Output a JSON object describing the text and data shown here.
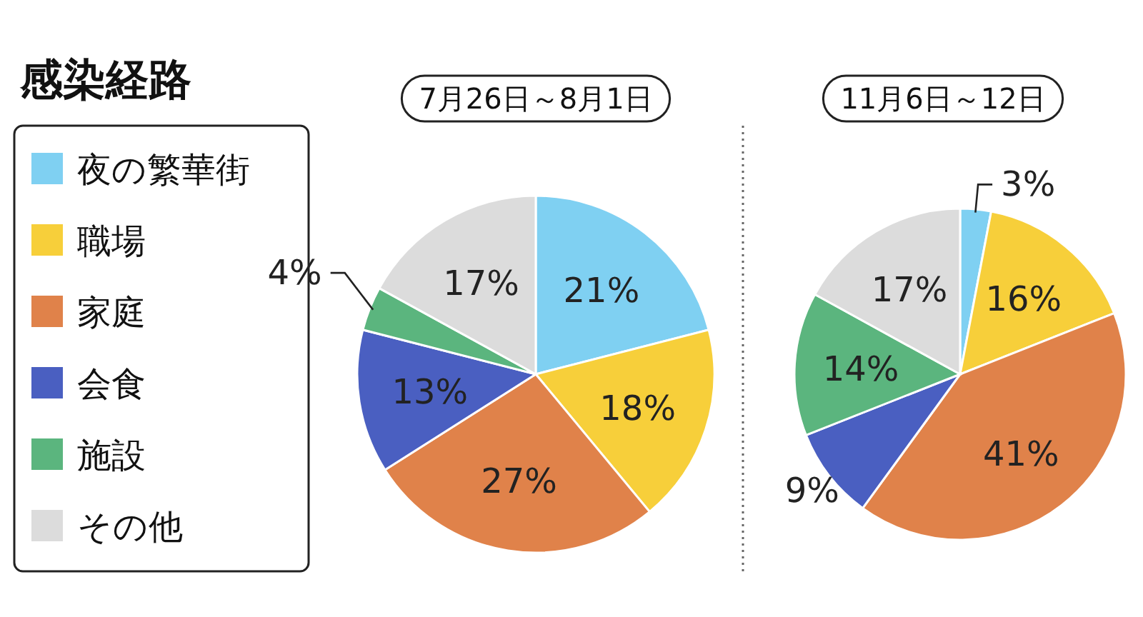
{
  "chart_data": [
    {
      "type": "pie",
      "title": "7月26日～8月1日",
      "legend_title": "感染経路",
      "legend": "left",
      "categories": [
        "夜の繁華街",
        "職場",
        "家庭",
        "会食",
        "施設",
        "その他"
      ],
      "values": [
        21,
        18,
        27,
        13,
        4,
        17
      ],
      "value_labels": [
        "21%",
        "18%",
        "27%",
        "13%",
        "4%",
        "17%"
      ],
      "colors": [
        "#7fd0f2",
        "#f7cf3a",
        "#e0824a",
        "#4a5fc1",
        "#5bb57e",
        "#dcdcdc"
      ]
    },
    {
      "type": "pie",
      "title": "11月6日～12日",
      "categories": [
        null,
        null,
        null,
        null,
        null,
        null
      ],
      "values": [
        3,
        16,
        41,
        9,
        14,
        17
      ],
      "value_labels": [
        "3%",
        "16%",
        "41%",
        "9%",
        "14%",
        "17%"
      ],
      "colors": [
        "#7fd0f2",
        "#f7cf3a",
        "#e0824a",
        "#4a5fc1",
        "#5bb57e",
        "#dcdcdc"
      ]
    }
  ]
}
